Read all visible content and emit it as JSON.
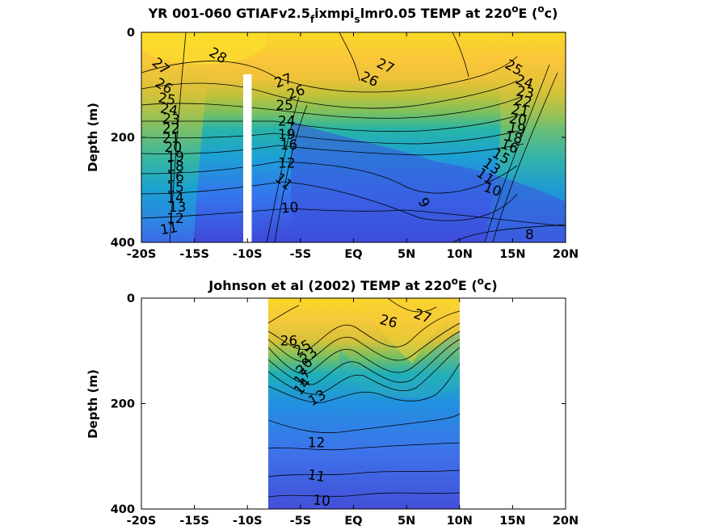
{
  "chart_data": [
    {
      "type": "contour",
      "title": "YR 001-060 GTIAFv2.5",
      "title_parts": {
        "a": "YR 001-060 GTIAFv2.5",
        "b": "f",
        "c": "ixmpi",
        "d": "s",
        "e": "lmr0.05 TEMP at 220",
        "f": "o",
        "g": "E (",
        "h": "o",
        "i": "c)"
      },
      "ylabel": "Depth (m)",
      "xlim": [
        -20,
        20
      ],
      "ylim": [
        0,
        400
      ],
      "x_ticks": [
        {
          "value": -20,
          "label": "-20S"
        },
        {
          "value": -15,
          "label": "-15S"
        },
        {
          "value": -10,
          "label": "-10S"
        },
        {
          "value": -5,
          "label": "-5S"
        },
        {
          "value": 0,
          "label": "EQ"
        },
        {
          "value": 5,
          "label": "5N"
        },
        {
          "value": 10,
          "label": "10N"
        },
        {
          "value": 15,
          "label": "15N"
        },
        {
          "value": 20,
          "label": "20N"
        }
      ],
      "y_ticks": [
        {
          "value": 0,
          "label": "0"
        },
        {
          "value": 200,
          "label": "200"
        },
        {
          "value": 400,
          "label": "400"
        }
      ],
      "data_extent": [
        -20,
        20
      ],
      "gap": {
        "x_from": -10.4,
        "x_to": -9.6,
        "depth_from": 80,
        "depth_to": 400
      },
      "contour_labels": [
        {
          "x": -18.2,
          "y": 65,
          "text": "27",
          "angle": 40
        },
        {
          "x": -12.8,
          "y": 45,
          "text": "28",
          "angle": 30
        },
        {
          "x": -17.9,
          "y": 103,
          "text": "26",
          "angle": 30
        },
        {
          "x": -17.6,
          "y": 128,
          "text": "25",
          "angle": 10
        },
        {
          "x": -17.4,
          "y": 148,
          "text": "24",
          "angle": 10
        },
        {
          "x": -17.2,
          "y": 166,
          "text": "23",
          "angle": 5
        },
        {
          "x": -17.2,
          "y": 184,
          "text": "22",
          "angle": 0
        },
        {
          "x": -17.2,
          "y": 202,
          "text": "21",
          "angle": 0
        },
        {
          "x": -17.0,
          "y": 220,
          "text": "20",
          "angle": 0
        },
        {
          "x": -16.8,
          "y": 238,
          "text": "19",
          "angle": 0
        },
        {
          "x": -16.8,
          "y": 256,
          "text": "18",
          "angle": 0
        },
        {
          "x": -16.8,
          "y": 276,
          "text": "16",
          "angle": 0
        },
        {
          "x": -16.8,
          "y": 296,
          "text": "15",
          "angle": 0
        },
        {
          "x": -16.8,
          "y": 316,
          "text": "14",
          "angle": 0
        },
        {
          "x": -16.6,
          "y": 334,
          "text": "13",
          "angle": 0
        },
        {
          "x": -16.8,
          "y": 355,
          "text": "12",
          "angle": 0
        },
        {
          "x": -17.4,
          "y": 375,
          "text": "11",
          "angle": -10
        },
        {
          "x": -6.6,
          "y": 93,
          "text": "27",
          "angle": -20
        },
        {
          "x": -5.4,
          "y": 115,
          "text": "26",
          "angle": -20
        },
        {
          "x": -6.5,
          "y": 140,
          "text": "25",
          "angle": 0
        },
        {
          "x": -6.3,
          "y": 170,
          "text": "24",
          "angle": 0
        },
        {
          "x": -6.3,
          "y": 195,
          "text": "19",
          "angle": 0
        },
        {
          "x": -6.1,
          "y": 215,
          "text": "16",
          "angle": 0
        },
        {
          "x": -6.3,
          "y": 250,
          "text": "12",
          "angle": 0
        },
        {
          "x": -6.6,
          "y": 285,
          "text": "11",
          "angle": 40
        },
        {
          "x": -6.0,
          "y": 335,
          "text": "10",
          "angle": -5
        },
        {
          "x": 3.0,
          "y": 65,
          "text": "27",
          "angle": 25
        },
        {
          "x": 1.5,
          "y": 90,
          "text": "26",
          "angle": 25
        },
        {
          "x": 6.6,
          "y": 325,
          "text": "9",
          "angle": 60
        },
        {
          "x": 15.1,
          "y": 68,
          "text": "25",
          "angle": 30
        },
        {
          "x": 16.1,
          "y": 95,
          "text": "24",
          "angle": 20
        },
        {
          "x": 16.2,
          "y": 115,
          "text": "23",
          "angle": 10
        },
        {
          "x": 16.0,
          "y": 132,
          "text": "22",
          "angle": 10
        },
        {
          "x": 15.7,
          "y": 150,
          "text": "21",
          "angle": 10
        },
        {
          "x": 15.5,
          "y": 167,
          "text": "20",
          "angle": 10
        },
        {
          "x": 15.4,
          "y": 184,
          "text": "19",
          "angle": 10
        },
        {
          "x": 15.1,
          "y": 201,
          "text": "18",
          "angle": 10
        },
        {
          "x": 14.7,
          "y": 218,
          "text": "16",
          "angle": 20
        },
        {
          "x": 13.9,
          "y": 237,
          "text": "15",
          "angle": 30
        },
        {
          "x": 13.0,
          "y": 256,
          "text": "13",
          "angle": 35
        },
        {
          "x": 12.4,
          "y": 275,
          "text": "11",
          "angle": 35
        },
        {
          "x": 13.1,
          "y": 300,
          "text": "10",
          "angle": 20
        },
        {
          "x": 16.6,
          "y": 386,
          "text": "8",
          "angle": 0
        }
      ]
    },
    {
      "type": "contour",
      "title": "Johnson et al (2002) TEMP at 220",
      "title_parts": {
        "a": "Johnson et al (2002) TEMP at 220",
        "b": "o",
        "c": "E (",
        "d": "o",
        "e": "c)"
      },
      "ylabel": "Depth (m)",
      "xlim": [
        -20,
        20
      ],
      "ylim": [
        0,
        400
      ],
      "x_ticks": [
        {
          "value": -20,
          "label": "-20S"
        },
        {
          "value": -15,
          "label": "-15S"
        },
        {
          "value": -10,
          "label": "-10S"
        },
        {
          "value": -5,
          "label": "-5S"
        },
        {
          "value": 0,
          "label": "EQ"
        },
        {
          "value": 5,
          "label": "5N"
        },
        {
          "value": 10,
          "label": "10N"
        },
        {
          "value": 15,
          "label": "15N"
        },
        {
          "value": 20,
          "label": "20N"
        }
      ],
      "y_ticks": [
        {
          "value": 0,
          "label": "0"
        },
        {
          "value": 200,
          "label": "200"
        },
        {
          "value": 400,
          "label": "400"
        }
      ],
      "data_extent": [
        -8,
        10
      ],
      "contour_labels": [
        {
          "x": -6.1,
          "y": 82,
          "text": "26",
          "angle": 0
        },
        {
          "x": -4.8,
          "y": 95,
          "text": "25",
          "angle": -30
        },
        {
          "x": -4.2,
          "y": 110,
          "text": "23",
          "angle": -40
        },
        {
          "x": -4.6,
          "y": 130,
          "text": "20",
          "angle": -50
        },
        {
          "x": -4.8,
          "y": 150,
          "text": "17",
          "angle": -50
        },
        {
          "x": -4.8,
          "y": 168,
          "text": "14",
          "angle": -50
        },
        {
          "x": -3.4,
          "y": 190,
          "text": "13",
          "angle": -30
        },
        {
          "x": 3.3,
          "y": 45,
          "text": "26",
          "angle": 15
        },
        {
          "x": 6.5,
          "y": 35,
          "text": "27",
          "angle": 20
        },
        {
          "x": -3.5,
          "y": 275,
          "text": "12",
          "angle": 0
        },
        {
          "x": -3.5,
          "y": 338,
          "text": "11",
          "angle": 10
        },
        {
          "x": -3.0,
          "y": 385,
          "text": "10",
          "angle": 5
        }
      ]
    }
  ]
}
